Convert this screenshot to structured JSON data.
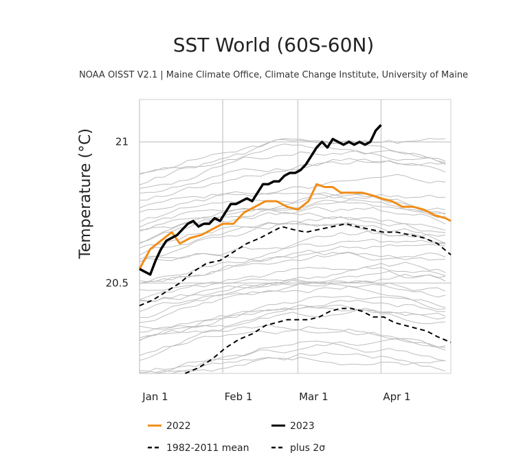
{
  "chart_data": {
    "type": "line",
    "title": "SST World (60S-60N)",
    "subtitle": "NOAA OISST V2.1 | Maine Climate Office, Climate Change Institute, University of Maine",
    "ylabel": "Temperature (°C)",
    "xlabel": "",
    "x_unit": "day of year",
    "xlim": [
      1,
      117
    ],
    "ylim": [
      20.18,
      21.15
    ],
    "x_ticks": [
      {
        "label": "Jan 1",
        "day": 1
      },
      {
        "label": "Feb 1",
        "day": 32
      },
      {
        "label": "Mar 1",
        "day": 60
      },
      {
        "label": "Apr 1",
        "day": 91
      }
    ],
    "y_ticks": [
      {
        "label": "20.5",
        "value": 20.5
      },
      {
        "label": "21",
        "value": 21.0
      }
    ],
    "grid": true,
    "legend_position": "bottom",
    "series": [
      {
        "name": "2022",
        "color": "#f28c17",
        "style": "solid",
        "points": [
          [
            1,
            20.55
          ],
          [
            5,
            20.62
          ],
          [
            9,
            20.65
          ],
          [
            13,
            20.68
          ],
          [
            16,
            20.64
          ],
          [
            20,
            20.66
          ],
          [
            24,
            20.67
          ],
          [
            28,
            20.69
          ],
          [
            32,
            20.71
          ],
          [
            36,
            20.71
          ],
          [
            40,
            20.75
          ],
          [
            44,
            20.77
          ],
          [
            48,
            20.79
          ],
          [
            52,
            20.79
          ],
          [
            56,
            20.77
          ],
          [
            60,
            20.76
          ],
          [
            64,
            20.79
          ],
          [
            67,
            20.85
          ],
          [
            70,
            20.84
          ],
          [
            73,
            20.84
          ],
          [
            76,
            20.82
          ],
          [
            80,
            20.82
          ],
          [
            84,
            20.82
          ],
          [
            88,
            20.81
          ],
          [
            91,
            20.8
          ],
          [
            95,
            20.79
          ],
          [
            99,
            20.77
          ],
          [
            103,
            20.77
          ],
          [
            107,
            20.76
          ],
          [
            111,
            20.74
          ],
          [
            115,
            20.73
          ],
          [
            117,
            20.72
          ]
        ]
      },
      {
        "name": "2023",
        "color": "#000000",
        "style": "solid",
        "points": [
          [
            1,
            20.55
          ],
          [
            3,
            20.54
          ],
          [
            5,
            20.53
          ],
          [
            7,
            20.58
          ],
          [
            9,
            20.62
          ],
          [
            11,
            20.65
          ],
          [
            13,
            20.66
          ],
          [
            15,
            20.67
          ],
          [
            17,
            20.69
          ],
          [
            19,
            20.71
          ],
          [
            21,
            20.72
          ],
          [
            23,
            20.7
          ],
          [
            25,
            20.71
          ],
          [
            27,
            20.71
          ],
          [
            29,
            20.73
          ],
          [
            31,
            20.72
          ],
          [
            33,
            20.75
          ],
          [
            35,
            20.78
          ],
          [
            37,
            20.78
          ],
          [
            39,
            20.79
          ],
          [
            41,
            20.8
          ],
          [
            43,
            20.79
          ],
          [
            45,
            20.82
          ],
          [
            47,
            20.85
          ],
          [
            49,
            20.85
          ],
          [
            51,
            20.86
          ],
          [
            53,
            20.86
          ],
          [
            55,
            20.88
          ],
          [
            57,
            20.89
          ],
          [
            59,
            20.89
          ],
          [
            61,
            20.9
          ],
          [
            63,
            20.92
          ],
          [
            65,
            20.95
          ],
          [
            67,
            20.98
          ],
          [
            69,
            21.0
          ],
          [
            71,
            20.98
          ],
          [
            73,
            21.01
          ],
          [
            75,
            21.0
          ],
          [
            77,
            20.99
          ],
          [
            79,
            21.0
          ],
          [
            81,
            20.99
          ],
          [
            83,
            21.0
          ],
          [
            85,
            20.99
          ],
          [
            87,
            21.0
          ],
          [
            89,
            21.04
          ],
          [
            91,
            21.06
          ]
        ]
      },
      {
        "name": "1982-2011 mean",
        "color": "#000000",
        "style": "dashed",
        "points": [
          [
            1,
            20.42
          ],
          [
            6,
            20.44
          ],
          [
            11,
            20.47
          ],
          [
            16,
            20.5
          ],
          [
            21,
            20.54
          ],
          [
            26,
            20.57
          ],
          [
            31,
            20.58
          ],
          [
            36,
            20.61
          ],
          [
            41,
            20.64
          ],
          [
            46,
            20.66
          ],
          [
            50,
            20.68
          ],
          [
            54,
            20.7
          ],
          [
            58,
            20.69
          ],
          [
            63,
            20.68
          ],
          [
            68,
            20.69
          ],
          [
            73,
            20.7
          ],
          [
            78,
            20.71
          ],
          [
            82,
            20.7
          ],
          [
            87,
            20.69
          ],
          [
            92,
            20.68
          ],
          [
            97,
            20.68
          ],
          [
            102,
            20.67
          ],
          [
            107,
            20.66
          ],
          [
            112,
            20.64
          ],
          [
            117,
            20.6
          ]
        ]
      },
      {
        "name": "plus 2σ",
        "color": "#000000",
        "style": "dashed",
        "points": [
          [
            18,
            20.18
          ],
          [
            23,
            20.2
          ],
          [
            28,
            20.23
          ],
          [
            33,
            20.27
          ],
          [
            38,
            20.3
          ],
          [
            43,
            20.32
          ],
          [
            48,
            20.35
          ],
          [
            52,
            20.36
          ],
          [
            56,
            20.37
          ],
          [
            60,
            20.37
          ],
          [
            64,
            20.37
          ],
          [
            68,
            20.38
          ],
          [
            72,
            20.4
          ],
          [
            76,
            20.41
          ],
          [
            80,
            20.41
          ],
          [
            84,
            20.4
          ],
          [
            88,
            20.38
          ],
          [
            92,
            20.38
          ],
          [
            96,
            20.36
          ],
          [
            100,
            20.35
          ],
          [
            104,
            20.34
          ],
          [
            108,
            20.33
          ],
          [
            112,
            20.31
          ],
          [
            117,
            20.29
          ]
        ]
      }
    ],
    "background_series_color": "#bdbdbd",
    "background_series_note": "individual years 1982–2021"
  },
  "legend": {
    "items": [
      {
        "label": "2022",
        "color": "#f28c17",
        "style": "solid"
      },
      {
        "label": "2023",
        "color": "#000000",
        "style": "solid"
      },
      {
        "label": "1982-2011 mean",
        "color": "#000000",
        "style": "dashed"
      },
      {
        "label": "plus 2σ",
        "color": "#000000",
        "style": "dashed"
      }
    ]
  }
}
